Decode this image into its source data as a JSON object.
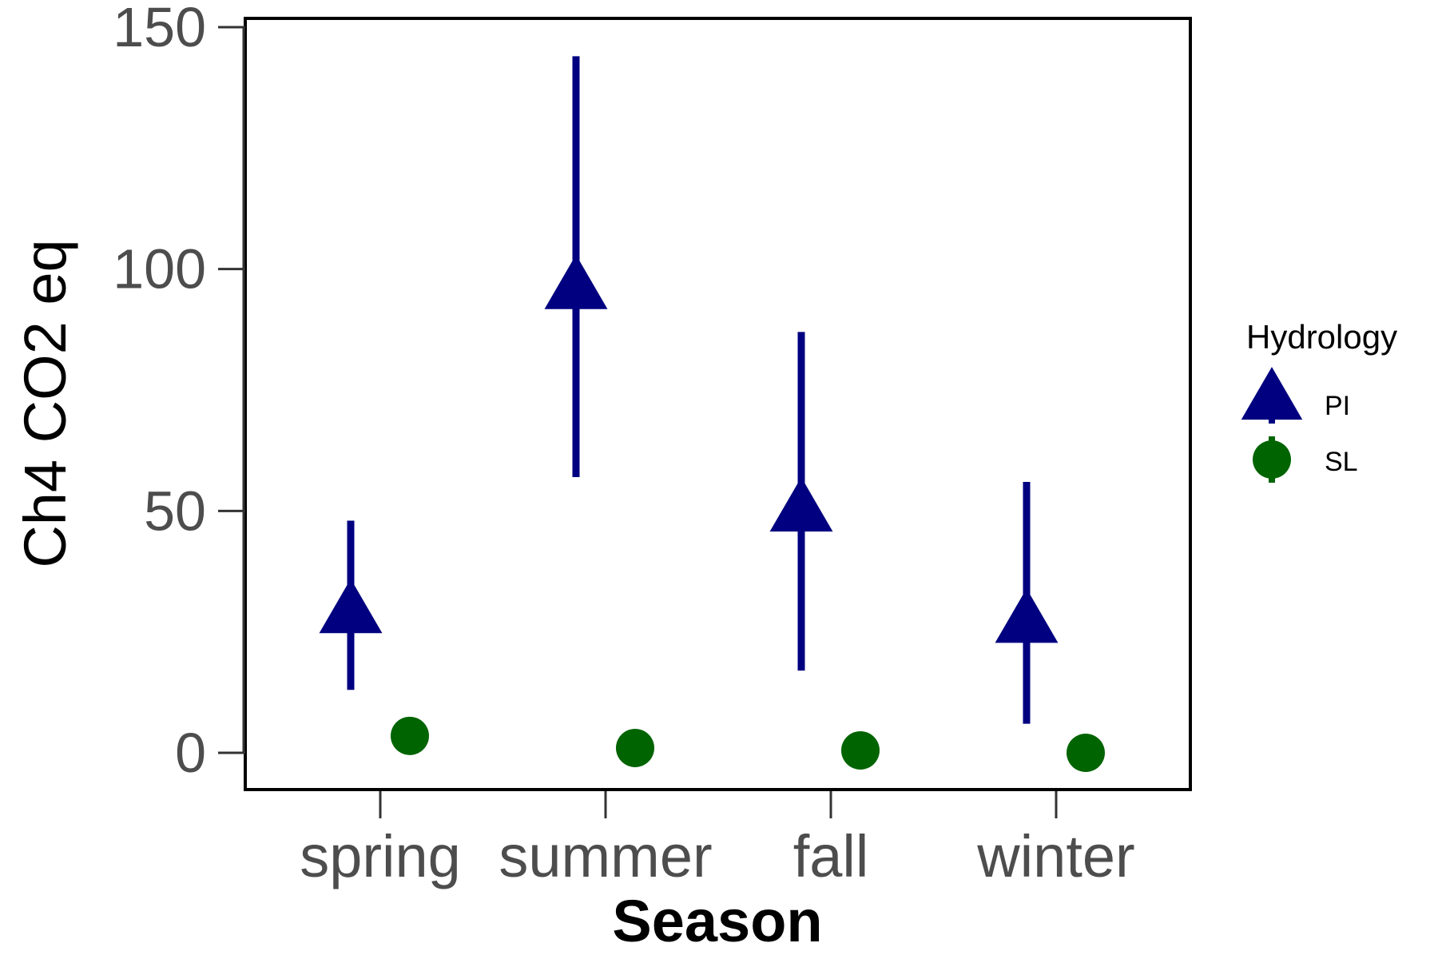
{
  "chart_data": {
    "type": "scatter",
    "xlabel": "Season",
    "ylabel": "Ch4 CO2 eq",
    "categories": [
      "spring",
      "summer",
      "fall",
      "winter"
    ],
    "ylim": [
      -7,
      152
    ],
    "yticks": [
      0,
      50,
      100,
      150
    ],
    "grid": false,
    "legend": {
      "title": "Hydrology",
      "position": "right",
      "entries": [
        "PI",
        "SL"
      ]
    },
    "series": [
      {
        "name": "PI",
        "marker": "triangle",
        "color": "#000080",
        "values": [
          29,
          96,
          50,
          27
        ],
        "lower": [
          13,
          57,
          17,
          6
        ],
        "upper": [
          48,
          144,
          87,
          56
        ]
      },
      {
        "name": "SL",
        "marker": "circle",
        "color": "#006400",
        "values": [
          3.5,
          1,
          0.5,
          0
        ],
        "lower": [
          3.5,
          1,
          0.5,
          0
        ],
        "upper": [
          3.5,
          1,
          0.5,
          0
        ]
      }
    ]
  }
}
